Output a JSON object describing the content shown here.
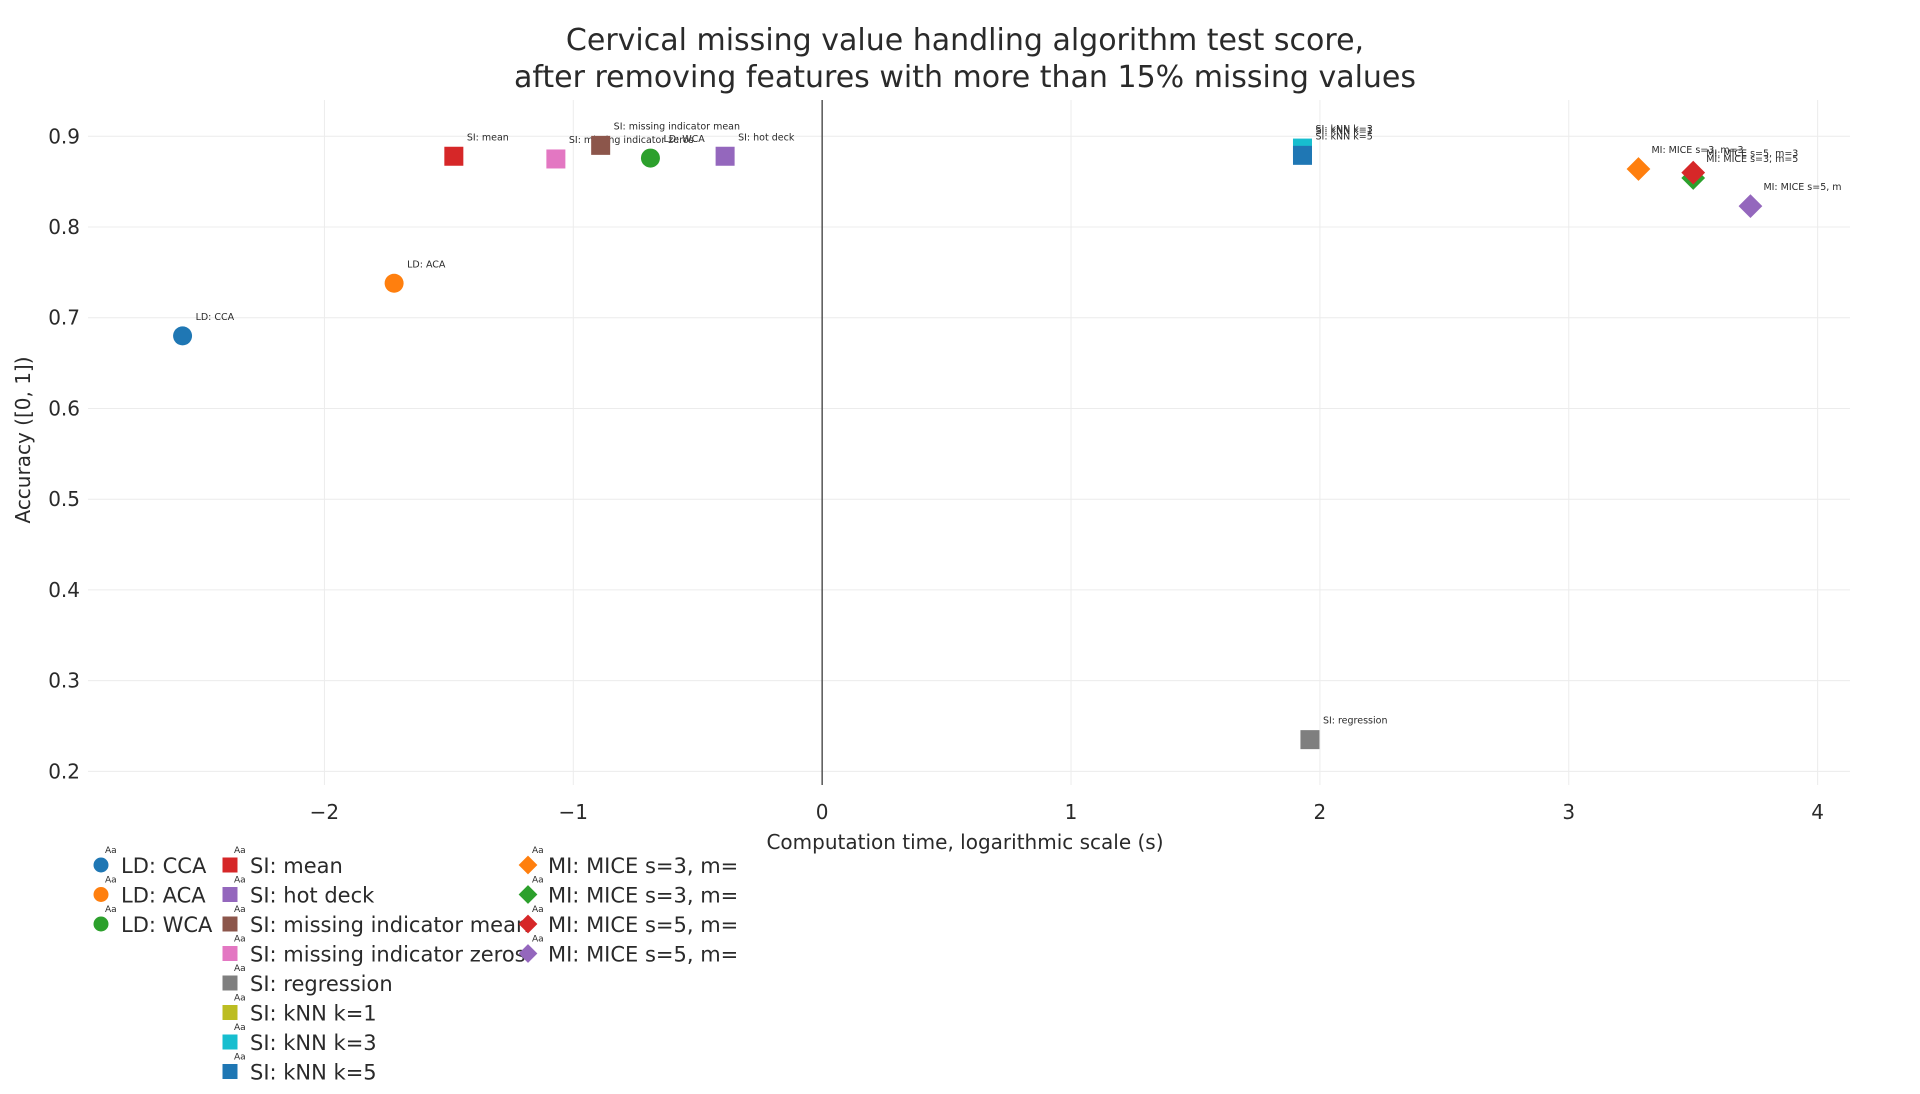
{
  "chart_data": {
    "type": "scatter",
    "title_line1": "Cervical missing value handling algorithm test score,",
    "title_line2": "after removing features with more than 15% missing values",
    "xlabel": "Computation time, logarithmic scale (s)",
    "ylabel": "Accuracy ([0, 1])",
    "xlim": [
      -2.95,
      4.13
    ],
    "ylim": [
      0.185,
      0.94
    ],
    "x_ticks": [
      -2,
      -1,
      0,
      1,
      2,
      3,
      4
    ],
    "x_tick_labels": [
      "−2",
      "−1",
      "0",
      "1",
      "2",
      "3",
      "4"
    ],
    "y_ticks": [
      0.2,
      0.3,
      0.4,
      0.5,
      0.6,
      0.7,
      0.8,
      0.9
    ],
    "y_tick_labels": [
      "0.2",
      "0.3",
      "0.4",
      "0.5",
      "0.6",
      "0.7",
      "0.8",
      "0.9"
    ],
    "grid": true,
    "legend_placement": "bottom-left",
    "series": [
      {
        "name": "LD: CCA",
        "label": "LD: CCA",
        "symbol": "circle",
        "color": "#1f77b4",
        "x": -2.57,
        "y": 0.68
      },
      {
        "name": "LD: ACA",
        "label": "LD: ACA",
        "symbol": "circle",
        "color": "#ff7f0e",
        "x": -1.72,
        "y": 0.738
      },
      {
        "name": "LD: WCA",
        "label": "LD: WCA",
        "symbol": "circle",
        "color": "#2ca02c",
        "x": -0.69,
        "y": 0.876
      },
      {
        "name": "SI: mean",
        "label": "SI: mean",
        "symbol": "square",
        "color": "#d62728",
        "x": -1.48,
        "y": 0.878
      },
      {
        "name": "SI: hot deck",
        "label": "SI: hot deck",
        "symbol": "square",
        "color": "#9467bd",
        "x": -0.39,
        "y": 0.878
      },
      {
        "name": "SI: missing indicator mean",
        "label": "SI: missing indicator mean",
        "symbol": "square",
        "color": "#8c564b",
        "x": -0.89,
        "y": 0.89
      },
      {
        "name": "SI: missing indicator zeros",
        "label": "SI: missing indicator zeros",
        "symbol": "square",
        "color": "#e377c2",
        "x": -1.07,
        "y": 0.875
      },
      {
        "name": "SI: regression",
        "label": "SI: regression",
        "symbol": "square",
        "color": "#7f7f7f",
        "x": 1.96,
        "y": 0.235
      },
      {
        "name": "SI: kNN k=1",
        "label": "SI: kNN k=1",
        "symbol": "square",
        "color": "#bcbd22",
        "x": 1.93,
        "y": 0.885
      },
      {
        "name": "SI: kNN k=3",
        "label": "SI: kNN k=3",
        "symbol": "square",
        "color": "#17becf",
        "x": 1.93,
        "y": 0.887
      },
      {
        "name": "SI: kNN k=5",
        "label": "SI: kNN k=5",
        "symbol": "square",
        "color": "#1f77b4",
        "x": 1.93,
        "y": 0.879
      },
      {
        "name": "MI: MICE s=3, m=3",
        "label": "MI: MICE s=3, m=3",
        "symbol": "diamond",
        "color": "#ff7f0e",
        "x": 3.28,
        "y": 0.864
      },
      {
        "name": "MI: MICE s=3, m=5",
        "label": "MI: MICE s=3, m=5",
        "symbol": "diamond",
        "color": "#2ca02c",
        "x": 3.5,
        "y": 0.854
      },
      {
        "name": "MI: MICE s=5, m=3",
        "label": "MI: MICE s=5, m=3",
        "symbol": "diamond",
        "color": "#d62728",
        "x": 3.5,
        "y": 0.86
      },
      {
        "name": "MI: MICE s=5, m=5",
        "label": "MI: MICE s=5, m",
        "symbol": "diamond",
        "color": "#9467bd",
        "x": 3.73,
        "y": 0.823
      }
    ],
    "legend_columns": [
      [
        "LD: CCA",
        "LD: ACA",
        "LD: WCA"
      ],
      [
        "SI: mean",
        "SI: hot deck",
        "SI: missing indicator mean",
        "SI: missing indicator zeros",
        "SI: regression",
        "SI: kNN k=1",
        "SI: kNN k=3",
        "SI: kNN k=5"
      ],
      [
        "MI: MICE s=3, m=",
        "MI: MICE s=3, m=",
        "MI: MICE s=5, m=",
        "MI: MICE s=5, m="
      ]
    ],
    "legend_series_index": [
      [
        0,
        1,
        2
      ],
      [
        3,
        4,
        5,
        6,
        7,
        8,
        9,
        10
      ],
      [
        11,
        12,
        13,
        14
      ]
    ]
  }
}
